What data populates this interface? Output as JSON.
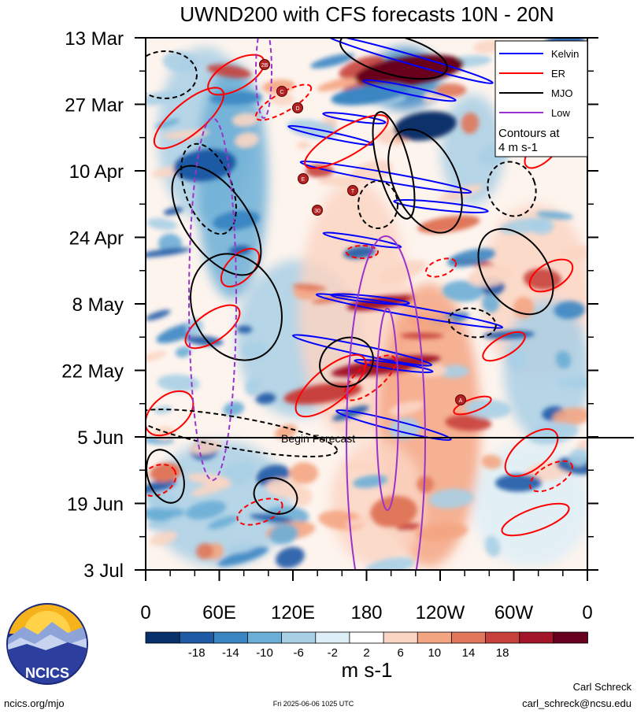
{
  "chart_data": {
    "type": "heatmap",
    "title": "UWND200 with CFS forecasts  10N - 20N",
    "x_ticks": [
      "0",
      "60E",
      "120E",
      "180",
      "120W",
      "60W",
      "0"
    ],
    "y_ticks": [
      "13 Mar",
      "27 Mar",
      "10 Apr",
      "24 Apr",
      "8 May",
      "22 May",
      "5 Jun",
      "19 Jun",
      "3 Jul"
    ],
    "xlim": [
      0,
      360
    ],
    "colorbar": {
      "ticks": [
        "-18",
        "-14",
        "-10",
        "-6",
        "-2",
        "2",
        "6",
        "10",
        "14",
        "18"
      ],
      "colors": [
        "#08306b",
        "#1f5aa6",
        "#3a86c3",
        "#6baed6",
        "#a9cfe5",
        "#ddeef7",
        "#ffffff",
        "#fbd5c3",
        "#f4a582",
        "#e0775a",
        "#c8403c",
        "#a3162a",
        "#67001f"
      ],
      "unit": "m s-1"
    },
    "legend": {
      "position": "top-right",
      "entries": [
        {
          "label": "Kelvin",
          "color": "#0000ff"
        },
        {
          "label": "ER",
          "color": "#ff0000"
        },
        {
          "label": "MJO",
          "color": "#000000"
        },
        {
          "label": "Low",
          "color": "#9a32cd"
        }
      ],
      "note_line1": "Contours at",
      "note_line2": "4 m s-1"
    },
    "forecast_label": "Begin Forecast",
    "forecast_start": "5 Jun",
    "storm_markers": [
      "2B",
      "C",
      "D",
      "E",
      "T",
      "30",
      "A"
    ]
  },
  "footer": {
    "logo_text": "NCICS",
    "url": "ncics.org/mjo",
    "timestamp": "Fri 2025-06-06 1025 UTC",
    "author": "Carl Schreck",
    "email": "carl_schreck@ncsu.edu"
  }
}
